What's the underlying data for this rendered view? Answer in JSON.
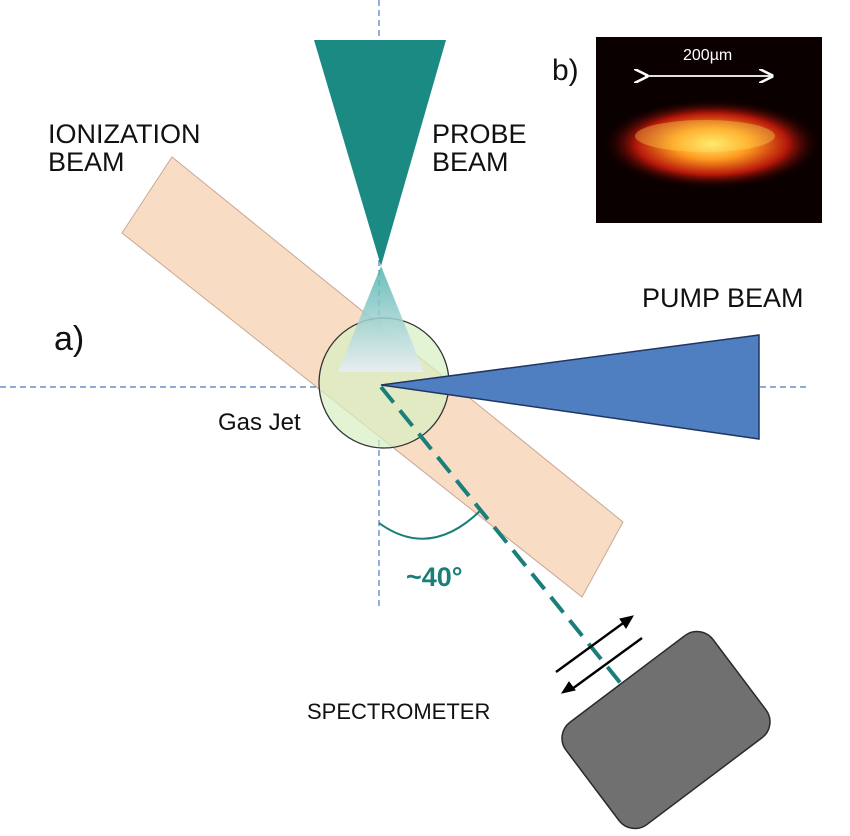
{
  "labels": {
    "ionization": [
      "IONIZATION",
      "BEAM"
    ],
    "probe": [
      "PROBE",
      "BEAM"
    ],
    "pump": "PUMP BEAM",
    "panel_a": "a)",
    "panel_b": "b)",
    "gas_jet": "Gas Jet",
    "angle": "~40°",
    "spectrometer": "SPECTROMETER",
    "scale_bar": "200µm"
  },
  "colors": {
    "ionization_beam": "#f9dcc4",
    "probe_beam": "#1a8a82",
    "pump_beam": "#4f7fc0",
    "gas_jet": "#d7f0c3",
    "spectrometer": "#707070",
    "angle": "#1a7f7a",
    "axes": "#4a78c0",
    "image_background": "#0b0000"
  },
  "icons": {
    "arrows": "double-arrow-icon",
    "spectrometer": "spectrometer-box"
  }
}
